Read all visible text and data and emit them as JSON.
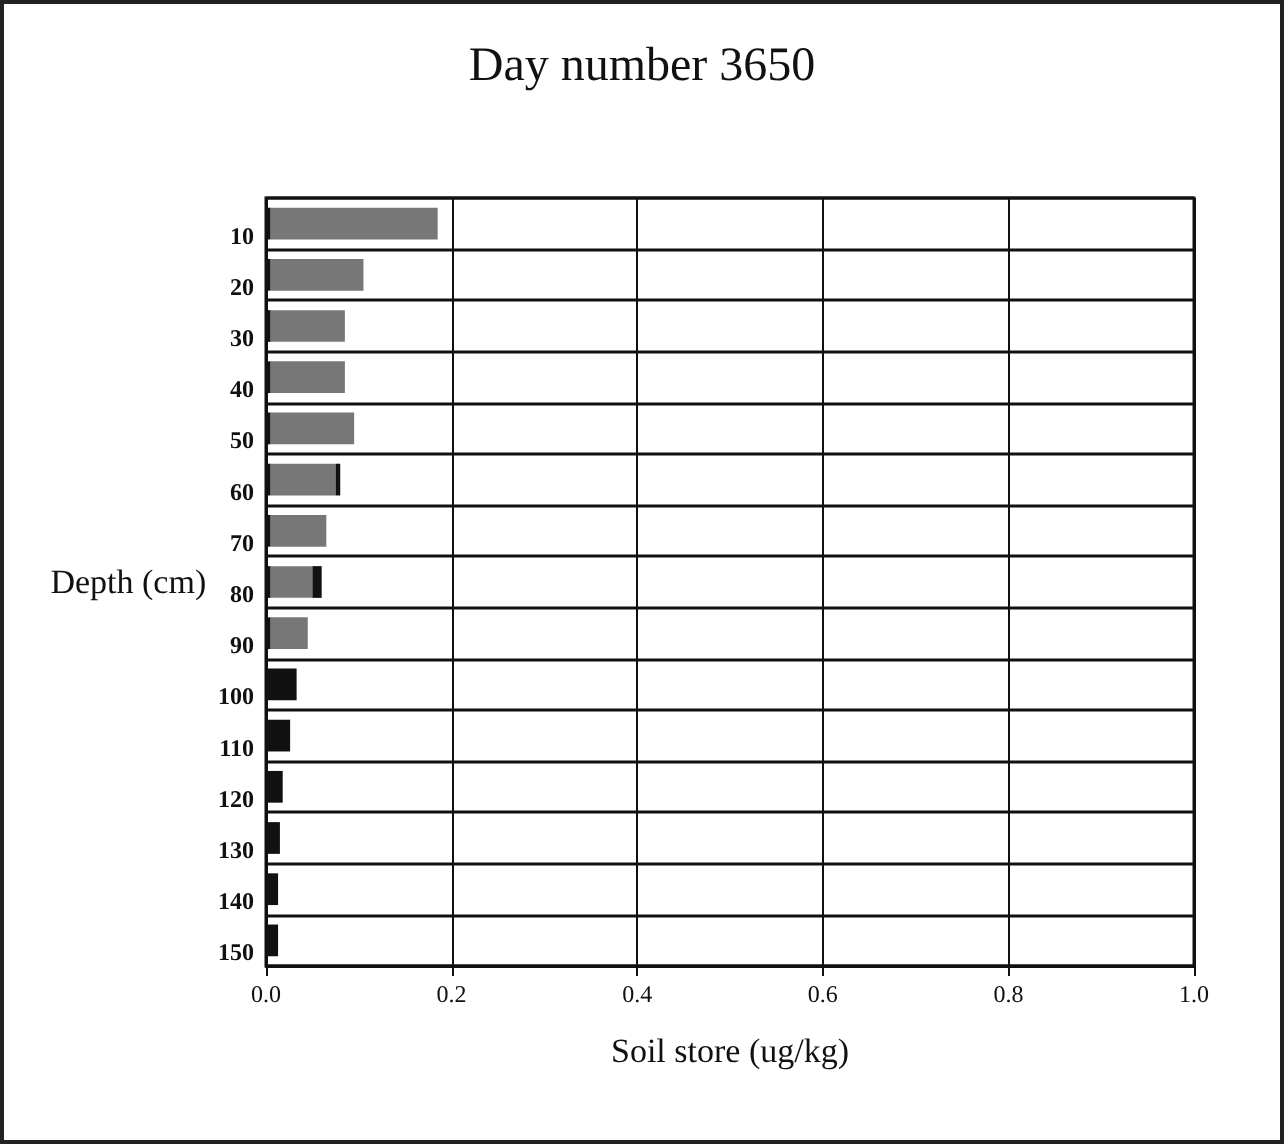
{
  "chart_data": {
    "type": "bar",
    "orientation": "horizontal",
    "stacked": true,
    "title": "Day number 3650",
    "xlabel": "Soil store (ug/kg)",
    "ylabel": "Depth (cm)",
    "categories": [
      "10",
      "20",
      "30",
      "40",
      "50",
      "60",
      "70",
      "80",
      "90",
      "100",
      "110",
      "120",
      "130",
      "140",
      "150"
    ],
    "series": [
      {
        "color": "#111111",
        "values": [
          0.005,
          0.005,
          0.005,
          0.005,
          0.005,
          0.005,
          0.005,
          0.005,
          0.005,
          0.033,
          0.026,
          0.018,
          0.015,
          0.013,
          0.013
        ]
      },
      {
        "color": "#777777",
        "values": [
          0.18,
          0.1,
          0.08,
          0.08,
          0.09,
          0.07,
          0.06,
          0.045,
          0.04,
          null,
          null,
          null,
          null,
          null,
          null
        ]
      },
      {
        "color": "#111111",
        "values": [
          null,
          null,
          null,
          null,
          null,
          0.005,
          null,
          0.01,
          null,
          null,
          null,
          null,
          null,
          null,
          null
        ]
      }
    ],
    "xlim": [
      0,
      1
    ],
    "xticks": [
      {
        "value": 0,
        "label": "0.0"
      },
      0.2,
      0.4,
      0.6,
      0.8,
      {
        "value": 1,
        "label": "1.0"
      }
    ],
    "grid": true
  }
}
